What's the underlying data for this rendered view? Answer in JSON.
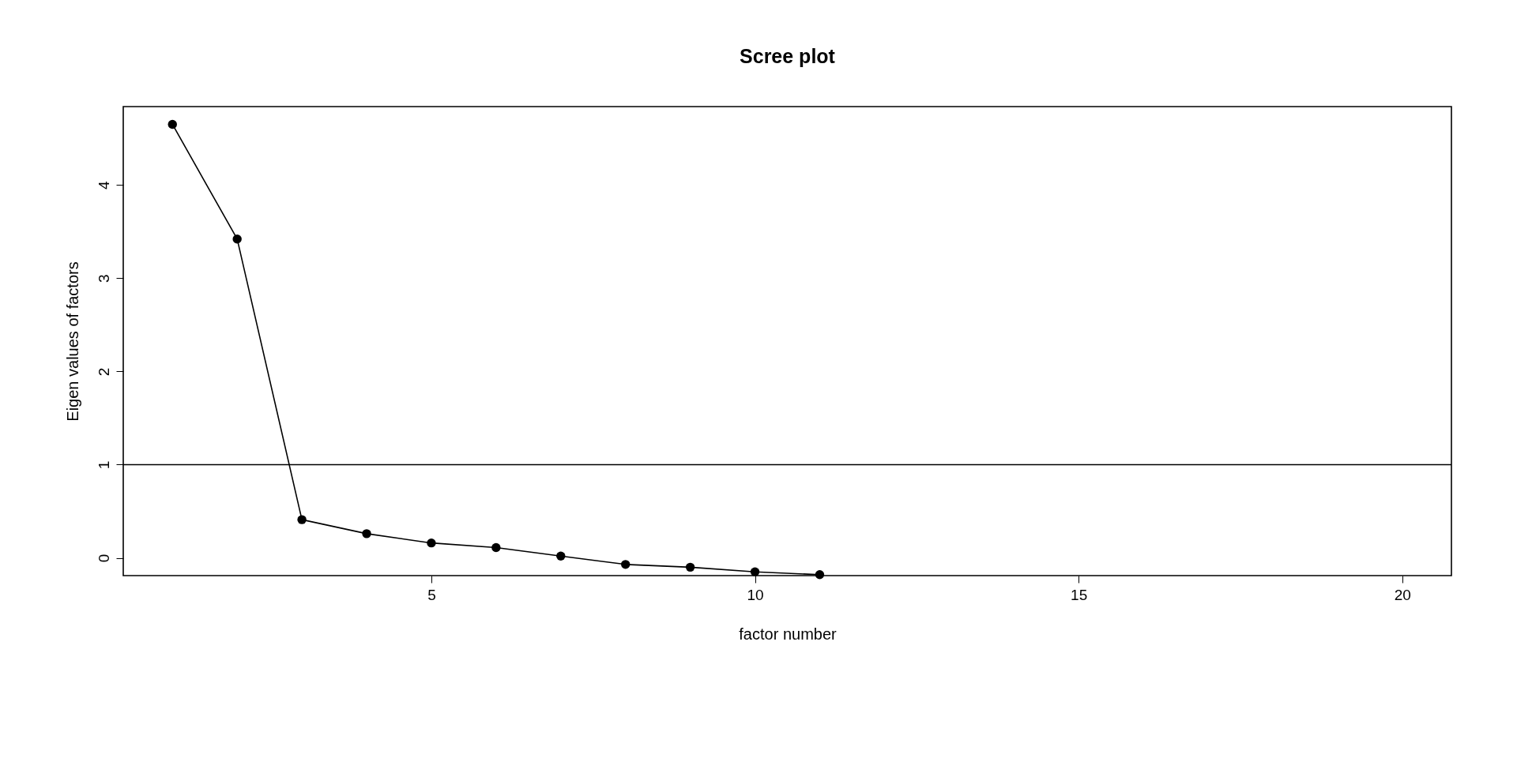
{
  "chart_data": {
    "type": "line",
    "title": "Scree plot",
    "xlabel": "factor number",
    "ylabel": "Eigen values of factors",
    "x": [
      1,
      2,
      3,
      4,
      5,
      6,
      7,
      8,
      9,
      10,
      11
    ],
    "series": [
      {
        "color": "#000000",
        "values": [
          4.65,
          3.42,
          0.41,
          0.26,
          0.16,
          0.11,
          0.02,
          -0.07,
          -0.1,
          -0.15,
          -0.18
        ]
      }
    ],
    "xlim": [
      0.24,
      20.76
    ],
    "xticks": [
      5,
      10,
      15,
      20
    ],
    "ylim": [
      -0.19,
      4.84
    ],
    "yticks": [
      0,
      1,
      2,
      3,
      4
    ],
    "ref_lines": [
      {
        "axis": "y",
        "value": 1,
        "color": "#000000"
      }
    ],
    "marker": "circle",
    "line_style": "solid",
    "grid": false
  }
}
